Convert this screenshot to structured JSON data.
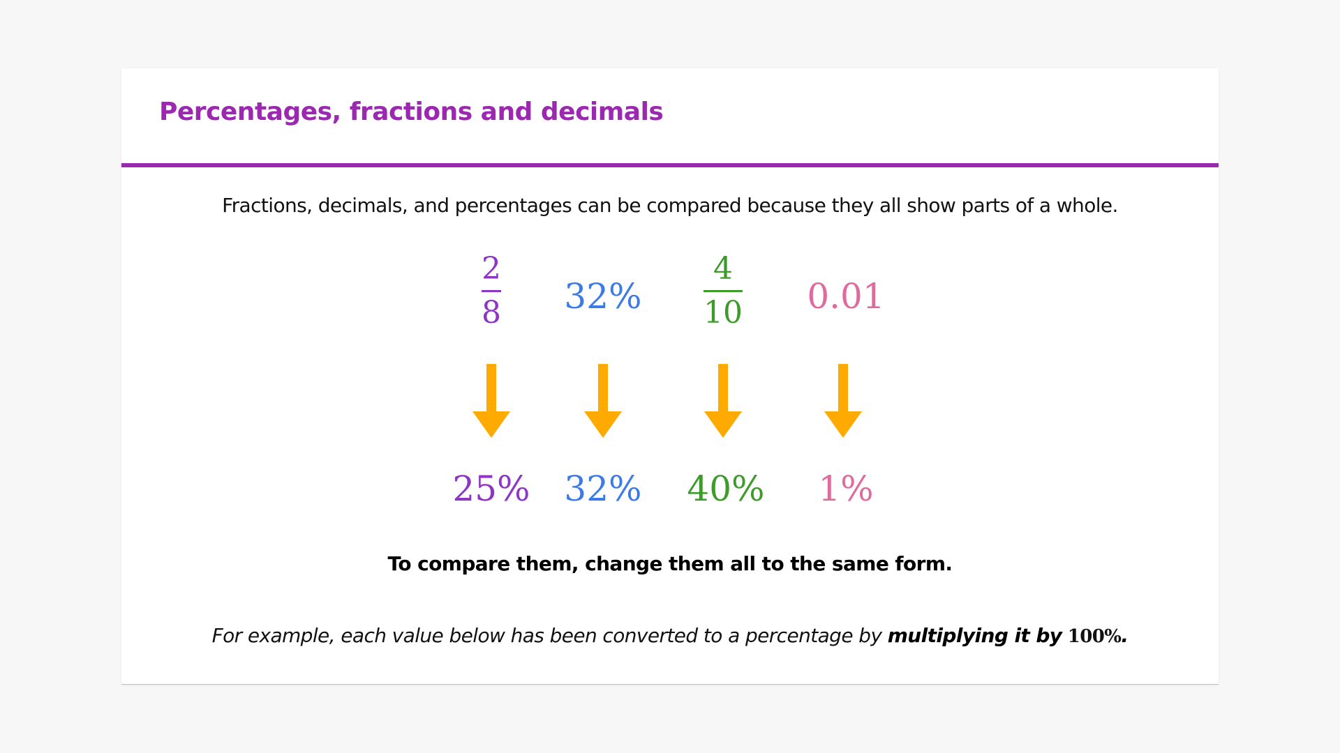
{
  "title": "Percentages, fractions and decimals",
  "intro": "Fractions, decimals, and percentages can be compared because they all show parts of a whole.",
  "colors": {
    "purple": "#9c27b0",
    "blue": "#3b7be6",
    "green": "#3d9b2a",
    "pink": "#e06a9c",
    "arrow": "#ffaa00"
  },
  "items": [
    {
      "top_numerator": "2",
      "top_denominator": "8",
      "top_value": "",
      "bottom": "25%"
    },
    {
      "top_numerator": "",
      "top_denominator": "",
      "top_value": "32%",
      "bottom": "32%"
    },
    {
      "top_numerator": "4",
      "top_denominator": "10",
      "top_value": "",
      "bottom": "40%"
    },
    {
      "top_numerator": "",
      "top_denominator": "",
      "top_value": "0.01",
      "bottom": "1%"
    }
  ],
  "emphasis": "To compare them, change them all to the same form.",
  "example": {
    "text": "For example, each value below has been converted to a percentage by ",
    "bold": "multiplying it by",
    "math": "100%",
    "end": "."
  }
}
